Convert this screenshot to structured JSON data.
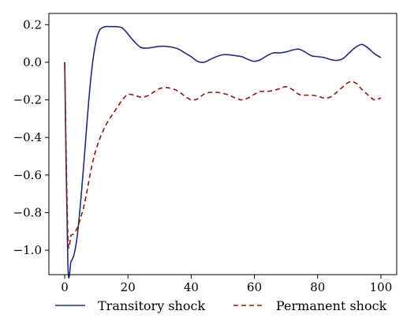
{
  "chart_data": {
    "type": "line",
    "title": "",
    "xlabel": "",
    "ylabel": "",
    "xlim": [
      -5,
      105
    ],
    "ylim": [
      -1.13,
      0.26
    ],
    "xticks": [
      0,
      20,
      40,
      60,
      80,
      100
    ],
    "xtick_labels": [
      "0",
      "20",
      "40",
      "60",
      "80",
      "100"
    ],
    "yticks": [
      -1.0,
      -0.8,
      -0.6,
      -0.4,
      -0.2,
      0.0,
      0.2
    ],
    "ytick_labels": [
      "−1.0",
      "−0.8",
      "−0.6",
      "−0.4",
      "−0.2",
      "0.0",
      "0.2"
    ],
    "grid": false,
    "legend_position": "bottom",
    "series": [
      {
        "name": "Transitory shock",
        "color": "#1f2d7a",
        "style": "solid",
        "x": [
          0,
          1,
          2,
          3,
          4,
          5,
          6,
          7,
          8,
          9,
          10,
          11,
          12,
          13,
          14,
          15,
          16,
          17,
          18,
          19,
          20,
          22,
          24,
          26,
          28,
          30,
          32,
          34,
          36,
          38,
          40,
          42,
          44,
          46,
          48,
          50,
          52,
          54,
          56,
          58,
          60,
          62,
          64,
          66,
          68,
          70,
          72,
          74,
          76,
          78,
          80,
          82,
          84,
          86,
          88,
          90,
          92,
          94,
          96,
          98,
          100
        ],
        "y": [
          0.0,
          -1.07,
          -1.06,
          -1.02,
          -0.92,
          -0.75,
          -0.55,
          -0.33,
          -0.13,
          0.02,
          0.12,
          0.17,
          0.185,
          0.19,
          0.19,
          0.19,
          0.19,
          0.188,
          0.185,
          0.17,
          0.15,
          0.11,
          0.08,
          0.075,
          0.08,
          0.085,
          0.085,
          0.08,
          0.07,
          0.05,
          0.03,
          0.005,
          0.0,
          0.015,
          0.03,
          0.04,
          0.04,
          0.035,
          0.03,
          0.015,
          0.005,
          0.015,
          0.035,
          0.05,
          0.05,
          0.055,
          0.065,
          0.07,
          0.055,
          0.035,
          0.03,
          0.025,
          0.015,
          0.01,
          0.02,
          0.05,
          0.08,
          0.095,
          0.075,
          0.045,
          0.025
        ]
      },
      {
        "name": "Permanent shock",
        "color": "#8b1a10",
        "style": "dashed",
        "x": [
          0,
          1,
          2,
          3,
          4,
          5,
          6,
          7,
          8,
          9,
          10,
          11,
          12,
          13,
          14,
          15,
          16,
          17,
          18,
          19,
          20,
          22,
          24,
          26,
          28,
          30,
          32,
          34,
          36,
          38,
          40,
          42,
          44,
          46,
          48,
          50,
          52,
          54,
          56,
          58,
          60,
          62,
          64,
          66,
          68,
          70,
          72,
          74,
          76,
          78,
          80,
          82,
          84,
          86,
          88,
          90,
          92,
          94,
          96,
          98,
          100
        ],
        "y": [
          0.0,
          -0.92,
          -0.92,
          -0.91,
          -0.88,
          -0.83,
          -0.77,
          -0.69,
          -0.6,
          -0.52,
          -0.46,
          -0.41,
          -0.37,
          -0.335,
          -0.305,
          -0.28,
          -0.255,
          -0.23,
          -0.205,
          -0.185,
          -0.17,
          -0.175,
          -0.185,
          -0.18,
          -0.16,
          -0.14,
          -0.135,
          -0.14,
          -0.155,
          -0.18,
          -0.2,
          -0.195,
          -0.17,
          -0.16,
          -0.16,
          -0.165,
          -0.175,
          -0.19,
          -0.2,
          -0.19,
          -0.17,
          -0.155,
          -0.155,
          -0.15,
          -0.14,
          -0.13,
          -0.145,
          -0.17,
          -0.175,
          -0.175,
          -0.18,
          -0.19,
          -0.185,
          -0.16,
          -0.13,
          -0.105,
          -0.11,
          -0.145,
          -0.175,
          -0.2,
          -0.19
        ]
      }
    ]
  }
}
